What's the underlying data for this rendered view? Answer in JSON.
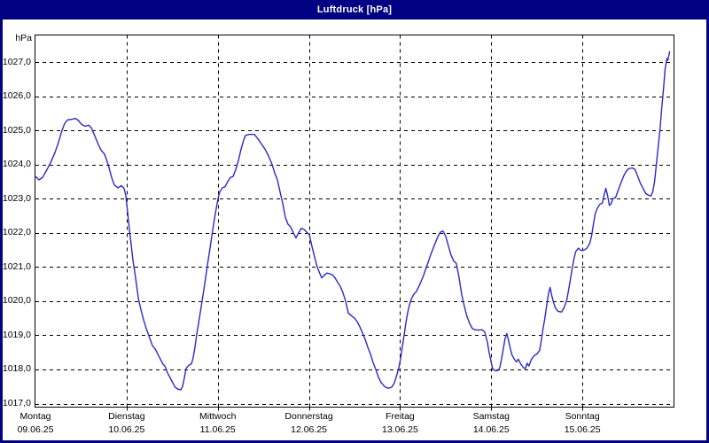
{
  "window": {
    "title": "Luftdruck [hPa]"
  },
  "chart_data": {
    "type": "line",
    "title": "Luftdruck [hPa]",
    "y_unit": "hPa",
    "ylim": [
      1017.0,
      1027.0
    ],
    "x_range_days": 7,
    "grid": "dashed-black-both-axes",
    "legend": "none",
    "background": "#ffffff",
    "frame_color": "#000082",
    "yticks": [
      {
        "value": 1027,
        "label": "1027,0"
      },
      {
        "value": 1026,
        "label": "1026,0"
      },
      {
        "value": 1025,
        "label": "1025,0"
      },
      {
        "value": 1024,
        "label": "1024,0"
      },
      {
        "value": 1023,
        "label": "1023,0"
      },
      {
        "value": 1022,
        "label": "1022,0"
      },
      {
        "value": 1021,
        "label": "1021,0"
      },
      {
        "value": 1020,
        "label": "1020,0"
      },
      {
        "value": 1019,
        "label": "1019,0"
      },
      {
        "value": 1018,
        "label": "1018,0"
      },
      {
        "value": 1017,
        "label": "1017,0"
      }
    ],
    "days": [
      {
        "name": "Montag",
        "date": "09.06.25"
      },
      {
        "name": "Dienstag",
        "date": "10.06.25"
      },
      {
        "name": "Mittwoch",
        "date": "11.06.25"
      },
      {
        "name": "Donnerstag",
        "date": "12.06.25"
      },
      {
        "name": "Freitag",
        "date": "13.06.25"
      },
      {
        "name": "Samstag",
        "date": "14.06.25"
      },
      {
        "name": "Sonntag",
        "date": "15.06.25"
      }
    ],
    "series": [
      {
        "name": "Luftdruck",
        "color": "#2a2ac8",
        "points": [
          [
            0.0,
            1023.65
          ],
          [
            0.039,
            1023.55
          ],
          [
            0.078,
            1023.62
          ],
          [
            0.126,
            1023.85
          ],
          [
            0.165,
            1024.05
          ],
          [
            0.214,
            1024.35
          ],
          [
            0.253,
            1024.65
          ],
          [
            0.292,
            1025.0
          ],
          [
            0.321,
            1025.2
          ],
          [
            0.35,
            1025.3
          ],
          [
            0.408,
            1025.33
          ],
          [
            0.437,
            1025.35
          ],
          [
            0.467,
            1025.3
          ],
          [
            0.505,
            1025.18
          ],
          [
            0.544,
            1025.12
          ],
          [
            0.583,
            1025.15
          ],
          [
            0.612,
            1025.08
          ],
          [
            0.642,
            1024.9
          ],
          [
            0.68,
            1024.65
          ],
          [
            0.719,
            1024.42
          ],
          [
            0.758,
            1024.3
          ],
          [
            0.797,
            1024.0
          ],
          [
            0.836,
            1023.62
          ],
          [
            0.865,
            1023.4
          ],
          [
            0.904,
            1023.32
          ],
          [
            0.943,
            1023.38
          ],
          [
            0.972,
            1023.3
          ],
          [
            0.991,
            1023.1
          ],
          [
            1.011,
            1022.6
          ],
          [
            1.031,
            1022.1
          ],
          [
            1.05,
            1021.65
          ],
          [
            1.069,
            1021.2
          ],
          [
            1.098,
            1020.7
          ],
          [
            1.128,
            1020.1
          ],
          [
            1.157,
            1019.75
          ],
          [
            1.186,
            1019.45
          ],
          [
            1.215,
            1019.2
          ],
          [
            1.244,
            1018.98
          ],
          [
            1.283,
            1018.7
          ],
          [
            1.322,
            1018.56
          ],
          [
            1.361,
            1018.35
          ],
          [
            1.4,
            1018.15
          ],
          [
            1.42,
            1018.1
          ],
          [
            1.449,
            1017.9
          ],
          [
            1.488,
            1017.7
          ],
          [
            1.527,
            1017.5
          ],
          [
            1.556,
            1017.43
          ],
          [
            1.594,
            1017.4
          ],
          [
            1.614,
            1017.5
          ],
          [
            1.633,
            1017.75
          ],
          [
            1.653,
            1018.03
          ],
          [
            1.682,
            1018.12
          ],
          [
            1.711,
            1018.16
          ],
          [
            1.731,
            1018.35
          ],
          [
            1.75,
            1018.65
          ],
          [
            1.769,
            1019.03
          ],
          [
            1.799,
            1019.5
          ],
          [
            1.828,
            1020.0
          ],
          [
            1.857,
            1020.5
          ],
          [
            1.886,
            1021.05
          ],
          [
            1.915,
            1021.55
          ],
          [
            1.944,
            1022.08
          ],
          [
            1.973,
            1022.55
          ],
          [
            2.003,
            1023.0
          ],
          [
            2.022,
            1023.2
          ],
          [
            2.051,
            1023.32
          ],
          [
            2.081,
            1023.35
          ],
          [
            2.11,
            1023.5
          ],
          [
            2.139,
            1023.62
          ],
          [
            2.168,
            1023.65
          ],
          [
            2.197,
            1023.85
          ],
          [
            2.227,
            1024.12
          ],
          [
            2.256,
            1024.45
          ],
          [
            2.285,
            1024.72
          ],
          [
            2.304,
            1024.85
          ],
          [
            2.343,
            1024.88
          ],
          [
            2.401,
            1024.88
          ],
          [
            2.44,
            1024.75
          ],
          [
            2.479,
            1024.6
          ],
          [
            2.518,
            1024.45
          ],
          [
            2.557,
            1024.25
          ],
          [
            2.596,
            1024.0
          ],
          [
            2.625,
            1023.75
          ],
          [
            2.654,
            1023.55
          ],
          [
            2.683,
            1023.2
          ],
          [
            2.713,
            1022.85
          ],
          [
            2.742,
            1022.45
          ],
          [
            2.771,
            1022.25
          ],
          [
            2.8,
            1022.17
          ],
          [
            2.829,
            1022.0
          ],
          [
            2.858,
            1021.85
          ],
          [
            2.887,
            1022.0
          ],
          [
            2.917,
            1022.13
          ],
          [
            2.946,
            1022.1
          ],
          [
            2.975,
            1022.02
          ],
          [
            3.004,
            1021.95
          ],
          [
            3.033,
            1021.6
          ],
          [
            3.062,
            1021.3
          ],
          [
            3.091,
            1021.0
          ],
          [
            3.121,
            1020.8
          ],
          [
            3.14,
            1020.68
          ],
          [
            3.169,
            1020.76
          ],
          [
            3.198,
            1020.82
          ],
          [
            3.227,
            1020.8
          ],
          [
            3.257,
            1020.77
          ],
          [
            3.286,
            1020.68
          ],
          [
            3.315,
            1020.55
          ],
          [
            3.344,
            1020.43
          ],
          [
            3.373,
            1020.25
          ],
          [
            3.403,
            1020.0
          ],
          [
            3.432,
            1019.65
          ],
          [
            3.471,
            1019.56
          ],
          [
            3.5,
            1019.5
          ],
          [
            3.529,
            1019.4
          ],
          [
            3.558,
            1019.25
          ],
          [
            3.587,
            1019.08
          ],
          [
            3.617,
            1018.88
          ],
          [
            3.646,
            1018.65
          ],
          [
            3.675,
            1018.45
          ],
          [
            3.704,
            1018.2
          ],
          [
            3.733,
            1018.0
          ],
          [
            3.762,
            1017.78
          ],
          [
            3.791,
            1017.62
          ],
          [
            3.83,
            1017.5
          ],
          [
            3.869,
            1017.45
          ],
          [
            3.908,
            1017.48
          ],
          [
            3.937,
            1017.6
          ],
          [
            3.966,
            1017.85
          ],
          [
            3.986,
            1018.05
          ],
          [
            4.005,
            1018.3
          ],
          [
            4.024,
            1018.65
          ],
          [
            4.044,
            1019.0
          ],
          [
            4.063,
            1019.35
          ],
          [
            4.082,
            1019.65
          ],
          [
            4.102,
            1019.88
          ],
          [
            4.121,
            1020.05
          ],
          [
            4.15,
            1020.2
          ],
          [
            4.179,
            1020.28
          ],
          [
            4.218,
            1020.5
          ],
          [
            4.257,
            1020.75
          ],
          [
            4.296,
            1021.05
          ],
          [
            4.335,
            1021.35
          ],
          [
            4.374,
            1021.62
          ],
          [
            4.413,
            1021.88
          ],
          [
            4.442,
            1022.02
          ],
          [
            4.471,
            1022.05
          ],
          [
            4.5,
            1021.9
          ],
          [
            4.53,
            1021.62
          ],
          [
            4.559,
            1021.35
          ],
          [
            4.588,
            1021.18
          ],
          [
            4.617,
            1021.1
          ],
          [
            4.646,
            1020.7
          ],
          [
            4.675,
            1020.2
          ],
          [
            4.705,
            1019.85
          ],
          [
            4.734,
            1019.55
          ],
          [
            4.763,
            1019.35
          ],
          [
            4.792,
            1019.2
          ],
          [
            4.821,
            1019.16
          ],
          [
            4.86,
            1019.15
          ],
          [
            4.899,
            1019.16
          ],
          [
            4.928,
            1019.1
          ],
          [
            4.957,
            1018.8
          ],
          [
            4.977,
            1018.5
          ],
          [
            5.0,
            1018.2
          ],
          [
            5.016,
            1018.02
          ],
          [
            5.045,
            1017.96
          ],
          [
            5.074,
            1017.97
          ],
          [
            5.093,
            1018.05
          ],
          [
            5.113,
            1018.3
          ],
          [
            5.132,
            1018.6
          ],
          [
            5.152,
            1018.9
          ],
          [
            5.171,
            1019.05
          ],
          [
            5.19,
            1018.85
          ],
          [
            5.21,
            1018.6
          ],
          [
            5.229,
            1018.42
          ],
          [
            5.258,
            1018.28
          ],
          [
            5.277,
            1018.22
          ],
          [
            5.297,
            1018.3
          ],
          [
            5.326,
            1018.15
          ],
          [
            5.355,
            1018.05
          ],
          [
            5.374,
            1018.02
          ],
          [
            5.394,
            1018.18
          ],
          [
            5.413,
            1018.1
          ],
          [
            5.442,
            1018.3
          ],
          [
            5.471,
            1018.4
          ],
          [
            5.501,
            1018.45
          ],
          [
            5.53,
            1018.55
          ],
          [
            5.549,
            1018.85
          ],
          [
            5.569,
            1019.2
          ],
          [
            5.588,
            1019.5
          ],
          [
            5.607,
            1019.85
          ],
          [
            5.627,
            1020.2
          ],
          [
            5.646,
            1020.4
          ],
          [
            5.665,
            1020.15
          ],
          [
            5.685,
            1019.95
          ],
          [
            5.704,
            1019.8
          ],
          [
            5.733,
            1019.7
          ],
          [
            5.772,
            1019.68
          ],
          [
            5.801,
            1019.82
          ],
          [
            5.83,
            1020.05
          ],
          [
            5.85,
            1020.35
          ],
          [
            5.869,
            1020.65
          ],
          [
            5.888,
            1020.95
          ],
          [
            5.908,
            1021.25
          ],
          [
            5.927,
            1021.45
          ],
          [
            5.956,
            1021.55
          ],
          [
            5.976,
            1021.5
          ],
          [
            6.0,
            1021.48
          ],
          [
            6.024,
            1021.5
          ],
          [
            6.053,
            1021.56
          ],
          [
            6.082,
            1021.7
          ],
          [
            6.102,
            1021.92
          ],
          [
            6.121,
            1022.25
          ],
          [
            6.141,
            1022.55
          ],
          [
            6.16,
            1022.7
          ],
          [
            6.189,
            1022.83
          ],
          [
            6.218,
            1022.87
          ],
          [
            6.238,
            1023.1
          ],
          [
            6.257,
            1023.3
          ],
          [
            6.276,
            1023.1
          ],
          [
            6.296,
            1022.8
          ],
          [
            6.315,
            1022.85
          ],
          [
            6.334,
            1023.0
          ],
          [
            6.364,
            1023.03
          ],
          [
            6.393,
            1023.25
          ],
          [
            6.422,
            1023.45
          ],
          [
            6.451,
            1023.65
          ],
          [
            6.48,
            1023.8
          ],
          [
            6.51,
            1023.88
          ],
          [
            6.549,
            1023.9
          ],
          [
            6.578,
            1023.85
          ],
          [
            6.607,
            1023.65
          ],
          [
            6.636,
            1023.45
          ],
          [
            6.666,
            1023.3
          ],
          [
            6.695,
            1023.15
          ],
          [
            6.724,
            1023.1
          ],
          [
            6.753,
            1023.08
          ],
          [
            6.772,
            1023.2
          ],
          [
            6.792,
            1023.5
          ],
          [
            6.811,
            1024.0
          ],
          [
            6.831,
            1024.5
          ],
          [
            6.85,
            1025.0
          ],
          [
            6.869,
            1025.6
          ],
          [
            6.889,
            1026.2
          ],
          [
            6.908,
            1026.8
          ],
          [
            6.927,
            1027.1
          ],
          [
            6.937,
            1027.05
          ],
          [
            6.957,
            1027.3
          ]
        ]
      }
    ]
  }
}
